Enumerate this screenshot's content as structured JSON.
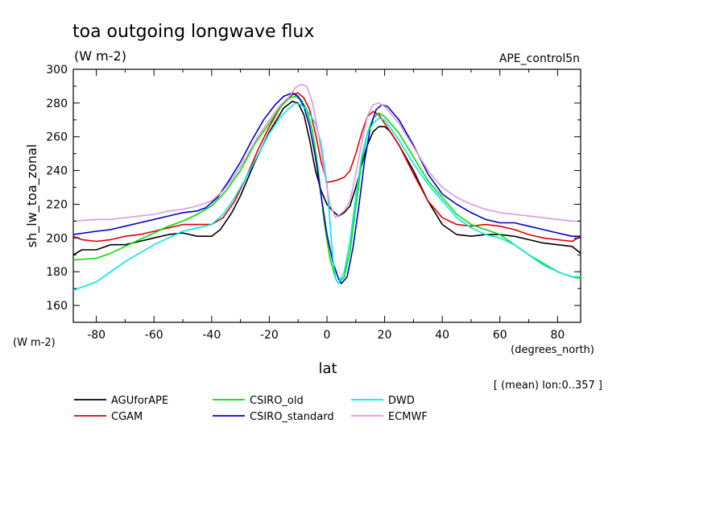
{
  "chart_data": {
    "type": "line",
    "title": "toa outgoing longwave flux",
    "subtitle": "(W m-2)",
    "experiment": "APE_control5n",
    "xlabel": "lat",
    "xunits": "(degrees_north)",
    "ylabel": "sh_lw_toa_zonal",
    "yunits": "(W m-2)",
    "footnote": "[ (mean) lon:0..357 ]",
    "xlim": [
      -88,
      88
    ],
    "ylim": [
      150,
      300
    ],
    "xticks": [
      -80,
      -60,
      -40,
      -20,
      0,
      20,
      40,
      60,
      80
    ],
    "yticks": [
      160,
      180,
      200,
      220,
      240,
      260,
      280,
      300
    ],
    "grid": false,
    "legend_position": "bottom",
    "series": [
      {
        "name": "AGUforAPE",
        "color": "#000000",
        "points": [
          [
            -88,
            190
          ],
          [
            -85,
            193
          ],
          [
            -80,
            193
          ],
          [
            -75,
            196
          ],
          [
            -70,
            196
          ],
          [
            -65,
            198
          ],
          [
            -60,
            200
          ],
          [
            -55,
            202
          ],
          [
            -50,
            203
          ],
          [
            -45,
            201
          ],
          [
            -40,
            201
          ],
          [
            -37,
            205
          ],
          [
            -33,
            215
          ],
          [
            -30,
            225
          ],
          [
            -25,
            245
          ],
          [
            -20,
            263
          ],
          [
            -15,
            277
          ],
          [
            -12,
            281
          ],
          [
            -10,
            280
          ],
          [
            -8,
            273
          ],
          [
            -6,
            258
          ],
          [
            -4,
            240
          ],
          [
            -2,
            228
          ],
          [
            0,
            220
          ],
          [
            2,
            216
          ],
          [
            4,
            213
          ],
          [
            6,
            215
          ],
          [
            8,
            219
          ],
          [
            10,
            230
          ],
          [
            12,
            243
          ],
          [
            14,
            255
          ],
          [
            16,
            263
          ],
          [
            18,
            266
          ],
          [
            20,
            266
          ],
          [
            22,
            263
          ],
          [
            25,
            255
          ],
          [
            30,
            240
          ],
          [
            35,
            222
          ],
          [
            40,
            208
          ],
          [
            45,
            202
          ],
          [
            50,
            201
          ],
          [
            55,
            202
          ],
          [
            60,
            202
          ],
          [
            65,
            201
          ],
          [
            70,
            199
          ],
          [
            75,
            197
          ],
          [
            80,
            196
          ],
          [
            85,
            195
          ],
          [
            88,
            191
          ]
        ]
      },
      {
        "name": "CGAM",
        "color": "#e00000",
        "points": [
          [
            -88,
            201
          ],
          [
            -85,
            199
          ],
          [
            -80,
            198
          ],
          [
            -75,
            199
          ],
          [
            -70,
            201
          ],
          [
            -65,
            202
          ],
          [
            -60,
            204
          ],
          [
            -55,
            206
          ],
          [
            -50,
            208
          ],
          [
            -45,
            208
          ],
          [
            -40,
            208
          ],
          [
            -36,
            212
          ],
          [
            -32,
            222
          ],
          [
            -28,
            236
          ],
          [
            -24,
            252
          ],
          [
            -20,
            266
          ],
          [
            -16,
            278
          ],
          [
            -12,
            285
          ],
          [
            -10,
            286
          ],
          [
            -8,
            283
          ],
          [
            -6,
            276
          ],
          [
            -4,
            262
          ],
          [
            -2,
            245
          ],
          [
            0,
            233
          ],
          [
            3,
            234
          ],
          [
            6,
            236
          ],
          [
            8,
            240
          ],
          [
            10,
            250
          ],
          [
            12,
            262
          ],
          [
            14,
            272
          ],
          [
            16,
            275
          ],
          [
            18,
            273
          ],
          [
            20,
            268
          ],
          [
            25,
            255
          ],
          [
            30,
            238
          ],
          [
            35,
            222
          ],
          [
            40,
            212
          ],
          [
            45,
            208
          ],
          [
            50,
            207
          ],
          [
            55,
            208
          ],
          [
            60,
            207
          ],
          [
            65,
            205
          ],
          [
            70,
            202
          ],
          [
            75,
            200
          ],
          [
            80,
            199
          ],
          [
            85,
            198
          ],
          [
            88,
            201
          ]
        ]
      },
      {
        "name": "CSIRO_old",
        "color": "#00dd00",
        "points": [
          [
            -88,
            187
          ],
          [
            -80,
            188
          ],
          [
            -75,
            191
          ],
          [
            -70,
            195
          ],
          [
            -65,
            199
          ],
          [
            -60,
            203
          ],
          [
            -55,
            207
          ],
          [
            -50,
            210
          ],
          [
            -45,
            214
          ],
          [
            -40,
            219
          ],
          [
            -35,
            228
          ],
          [
            -30,
            240
          ],
          [
            -25,
            256
          ],
          [
            -20,
            268
          ],
          [
            -16,
            278
          ],
          [
            -13,
            283
          ],
          [
            -11,
            284
          ],
          [
            -9,
            282
          ],
          [
            -7,
            276
          ],
          [
            -5,
            263
          ],
          [
            -3,
            240
          ],
          [
            -1,
            210
          ],
          [
            1,
            188
          ],
          [
            3,
            176
          ],
          [
            4,
            173
          ],
          [
            6,
            177
          ],
          [
            8,
            192
          ],
          [
            10,
            218
          ],
          [
            12,
            245
          ],
          [
            14,
            262
          ],
          [
            16,
            271
          ],
          [
            18,
            274
          ],
          [
            20,
            272
          ],
          [
            25,
            262
          ],
          [
            30,
            248
          ],
          [
            35,
            234
          ],
          [
            40,
            224
          ],
          [
            45,
            214
          ],
          [
            50,
            208
          ],
          [
            55,
            205
          ],
          [
            60,
            202
          ],
          [
            65,
            196
          ],
          [
            70,
            190
          ],
          [
            75,
            185
          ],
          [
            80,
            180
          ],
          [
            85,
            177
          ],
          [
            88,
            176
          ]
        ]
      },
      {
        "name": "CSIRO_standard",
        "color": "#0000cc",
        "points": [
          [
            -88,
            202
          ],
          [
            -80,
            204
          ],
          [
            -75,
            205
          ],
          [
            -70,
            207
          ],
          [
            -65,
            209
          ],
          [
            -60,
            211
          ],
          [
            -55,
            213
          ],
          [
            -50,
            215
          ],
          [
            -45,
            216
          ],
          [
            -42,
            218
          ],
          [
            -38,
            224
          ],
          [
            -34,
            234
          ],
          [
            -30,
            245
          ],
          [
            -26,
            258
          ],
          [
            -22,
            270
          ],
          [
            -18,
            279
          ],
          [
            -15,
            284
          ],
          [
            -12,
            286
          ],
          [
            -10,
            284
          ],
          [
            -8,
            278
          ],
          [
            -6,
            266
          ],
          [
            -4,
            248
          ],
          [
            -2,
            225
          ],
          [
            0,
            202
          ],
          [
            2,
            186
          ],
          [
            4,
            176
          ],
          [
            5,
            173
          ],
          [
            7,
            177
          ],
          [
            9,
            194
          ],
          [
            11,
            218
          ],
          [
            13,
            245
          ],
          [
            15,
            265
          ],
          [
            17,
            276
          ],
          [
            19,
            279
          ],
          [
            21,
            278
          ],
          [
            25,
            270
          ],
          [
            30,
            255
          ],
          [
            35,
            238
          ],
          [
            40,
            226
          ],
          [
            45,
            220
          ],
          [
            50,
            215
          ],
          [
            55,
            211
          ],
          [
            60,
            209
          ],
          [
            65,
            209
          ],
          [
            70,
            207
          ],
          [
            75,
            205
          ],
          [
            80,
            203
          ],
          [
            85,
            201
          ],
          [
            88,
            201
          ]
        ]
      },
      {
        "name": "DWD",
        "color": "#00e8e8",
        "points": [
          [
            -88,
            169
          ],
          [
            -80,
            174
          ],
          [
            -75,
            180
          ],
          [
            -70,
            186
          ],
          [
            -65,
            191
          ],
          [
            -60,
            196
          ],
          [
            -55,
            200
          ],
          [
            -50,
            204
          ],
          [
            -45,
            206
          ],
          [
            -40,
            208
          ],
          [
            -36,
            214
          ],
          [
            -32,
            224
          ],
          [
            -28,
            236
          ],
          [
            -24,
            249
          ],
          [
            -20,
            262
          ],
          [
            -16,
            272
          ],
          [
            -13,
            277
          ],
          [
            -11,
            280
          ],
          [
            -9,
            279
          ],
          [
            -7,
            276
          ],
          [
            -4,
            268
          ],
          [
            -2,
            256
          ],
          [
            0,
            232
          ],
          [
            1,
            210
          ],
          [
            2,
            188
          ],
          [
            3,
            176
          ],
          [
            4,
            173
          ],
          [
            6,
            180
          ],
          [
            8,
            198
          ],
          [
            10,
            225
          ],
          [
            12,
            248
          ],
          [
            14,
            262
          ],
          [
            16,
            268
          ],
          [
            18,
            271
          ],
          [
            20,
            270
          ],
          [
            25,
            258
          ],
          [
            30,
            244
          ],
          [
            35,
            232
          ],
          [
            40,
            222
          ],
          [
            45,
            212
          ],
          [
            50,
            206
          ],
          [
            55,
            202
          ],
          [
            60,
            200
          ],
          [
            65,
            196
          ],
          [
            70,
            190
          ],
          [
            75,
            184
          ],
          [
            80,
            180
          ],
          [
            85,
            177
          ],
          [
            88,
            177
          ]
        ]
      },
      {
        "name": "ECMWF",
        "color": "#dd99dd",
        "points": [
          [
            -88,
            210
          ],
          [
            -80,
            211
          ],
          [
            -75,
            211
          ],
          [
            -70,
            212
          ],
          [
            -65,
            213
          ],
          [
            -60,
            214
          ],
          [
            -55,
            216
          ],
          [
            -50,
            217
          ],
          [
            -45,
            219
          ],
          [
            -40,
            222
          ],
          [
            -36,
            228
          ],
          [
            -32,
            237
          ],
          [
            -28,
            248
          ],
          [
            -24,
            260
          ],
          [
            -20,
            270
          ],
          [
            -16,
            279
          ],
          [
            -13,
            284
          ],
          [
            -11,
            289
          ],
          [
            -9,
            291
          ],
          [
            -7,
            290
          ],
          [
            -5,
            280
          ],
          [
            -3,
            262
          ],
          [
            -1,
            240
          ],
          [
            1,
            220
          ],
          [
            3,
            212
          ],
          [
            6,
            216
          ],
          [
            8,
            222
          ],
          [
            10,
            238
          ],
          [
            12,
            256
          ],
          [
            14,
            272
          ],
          [
            16,
            279
          ],
          [
            18,
            280
          ],
          [
            20,
            278
          ],
          [
            25,
            268
          ],
          [
            30,
            254
          ],
          [
            35,
            240
          ],
          [
            40,
            230
          ],
          [
            45,
            224
          ],
          [
            50,
            220
          ],
          [
            55,
            217
          ],
          [
            60,
            215
          ],
          [
            65,
            214
          ],
          [
            70,
            213
          ],
          [
            75,
            212
          ],
          [
            80,
            211
          ],
          [
            85,
            210
          ],
          [
            88,
            210
          ]
        ]
      }
    ]
  }
}
